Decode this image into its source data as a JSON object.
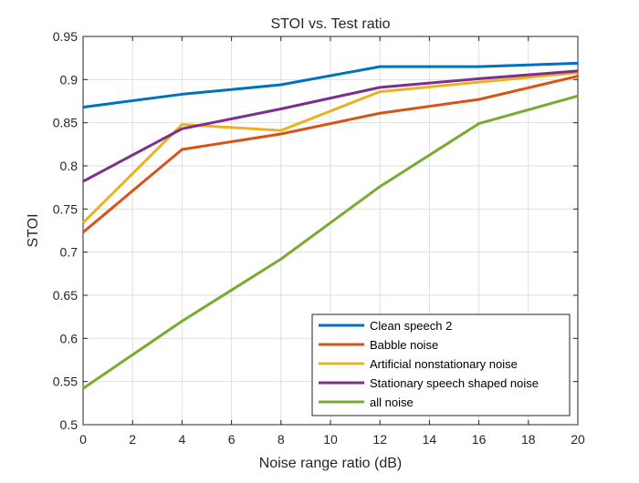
{
  "chart_data": {
    "type": "line",
    "title": "STOI vs. Test ratio",
    "xlabel": "Noise range ratio (dB)",
    "ylabel": "STOI",
    "x": [
      0,
      4,
      8,
      12,
      16,
      20
    ],
    "xlim": [
      0,
      20
    ],
    "ylim": [
      0.5,
      0.95
    ],
    "xticks": [
      "0",
      "2",
      "4",
      "6",
      "8",
      "10",
      "12",
      "14",
      "16",
      "18",
      "20"
    ],
    "yticks": [
      "0.5",
      "0.55",
      "0.6",
      "0.65",
      "0.7",
      "0.75",
      "0.8",
      "0.85",
      "0.9",
      "0.95"
    ],
    "grid": true,
    "legend_position": "bottom-right",
    "series": [
      {
        "name": "Clean speech 2",
        "color": "#0072BD",
        "values": [
          0.868,
          0.883,
          0.894,
          0.915,
          0.915,
          0.919
        ]
      },
      {
        "name": "Babble noise",
        "color": "#D95319",
        "values": [
          0.723,
          0.819,
          0.837,
          0.861,
          0.877,
          0.904
        ]
      },
      {
        "name": "Artificial nonstationary noise",
        "color": "#EDB120",
        "values": [
          0.734,
          0.848,
          0.841,
          0.886,
          0.897,
          0.908
        ]
      },
      {
        "name": "Stationary speech shaped noise",
        "color": "#7E2F8E",
        "values": [
          0.782,
          0.843,
          0.866,
          0.891,
          0.901,
          0.91
        ]
      },
      {
        "name": "all noise",
        "color": "#77AC30",
        "values": [
          0.542,
          0.62,
          0.692,
          0.776,
          0.849,
          0.881
        ]
      }
    ]
  }
}
